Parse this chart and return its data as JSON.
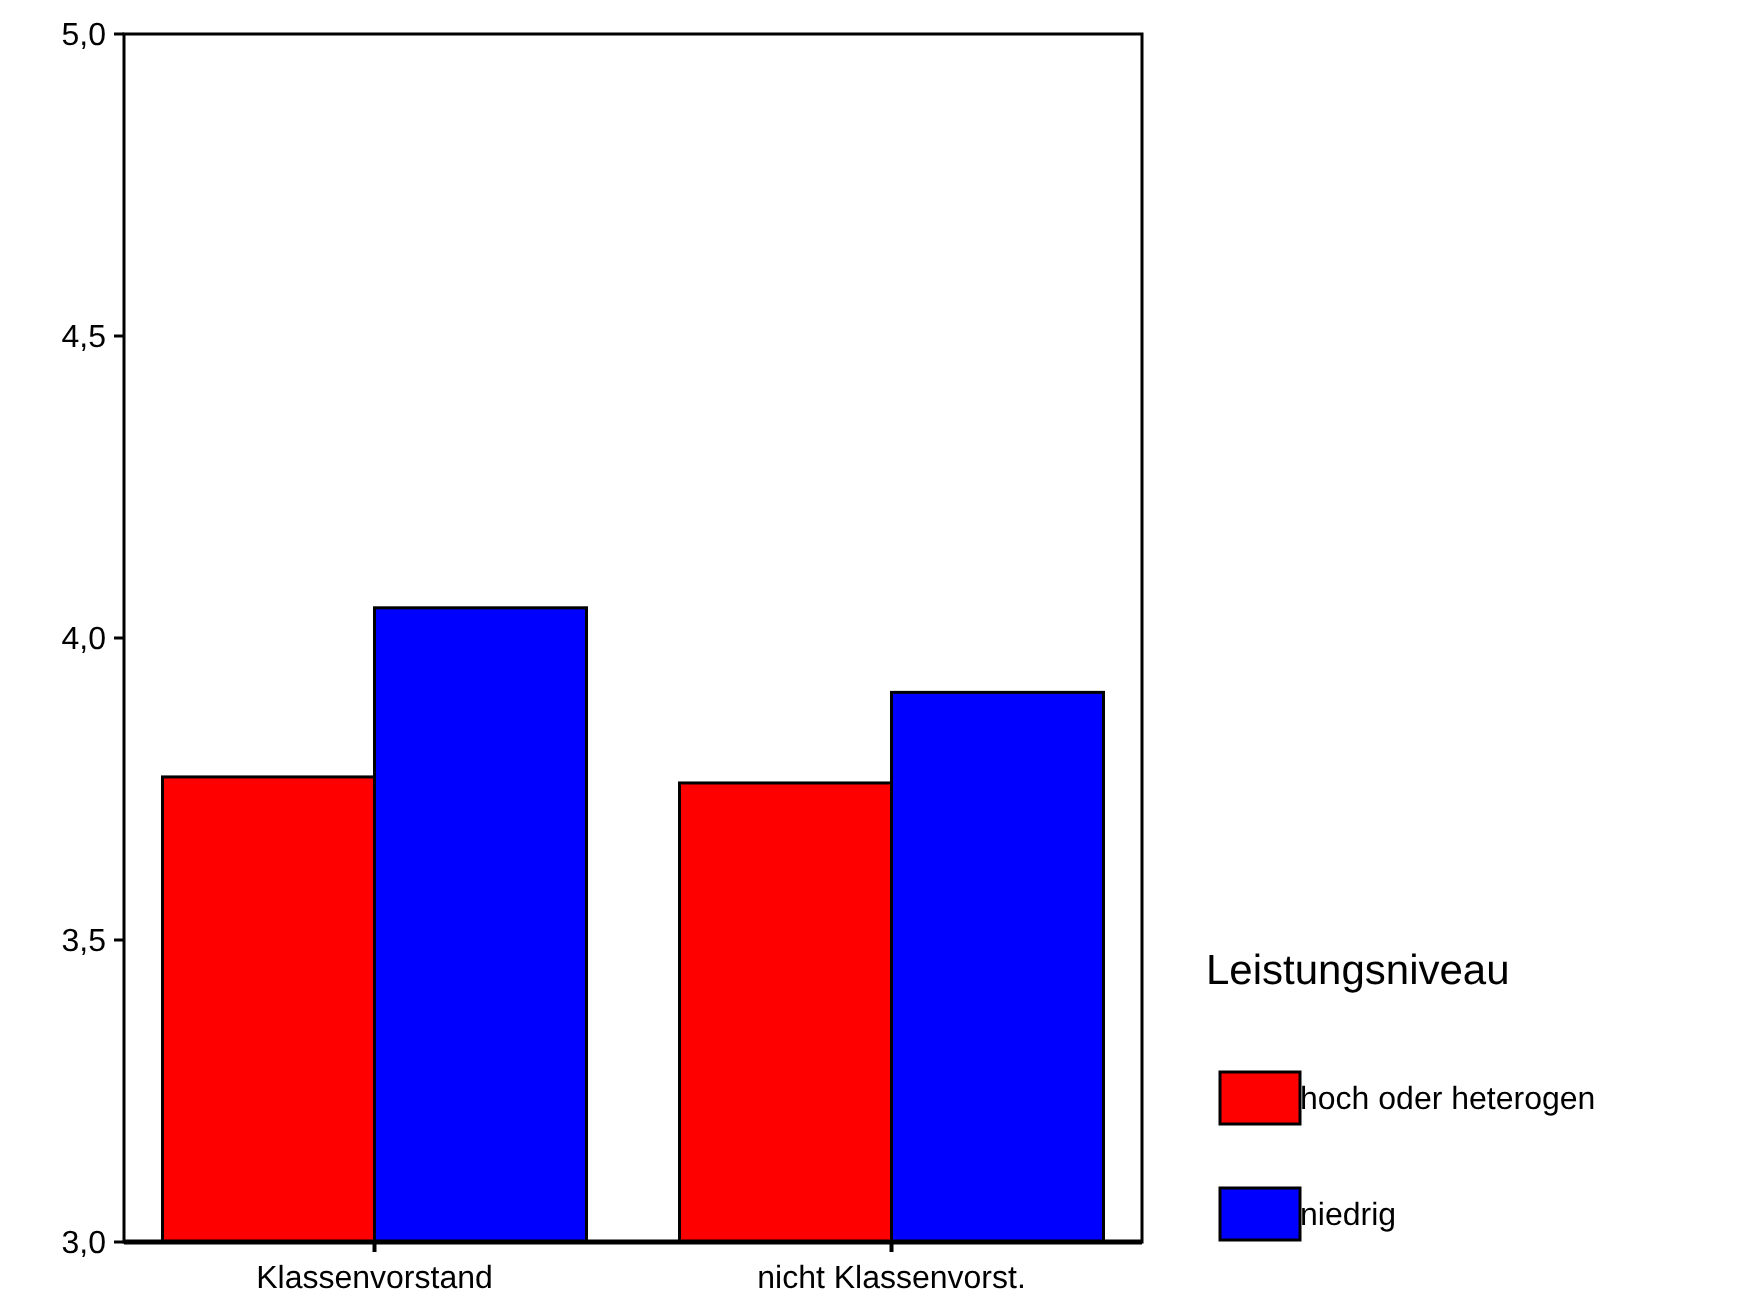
{
  "chart_data": {
    "type": "bar",
    "categories": [
      "Klassenvorstand",
      "nicht Klassenvorst."
    ],
    "series": [
      {
        "name": "hoch oder heterogen",
        "color": "#ff0000",
        "values": [
          3.77,
          3.76
        ]
      },
      {
        "name": "niedrig",
        "color": "#0000ff",
        "values": [
          4.05,
          3.91
        ]
      }
    ],
    "ylim": [
      3,
      5
    ],
    "yticks": [
      {
        "value": 3,
        "label": "3,0"
      },
      {
        "value": 3.5,
        "label": "3,5"
      },
      {
        "value": 4,
        "label": "4,0"
      },
      {
        "value": 4.5,
        "label": "4,5"
      },
      {
        "value": 5,
        "label": "5,0"
      }
    ],
    "legend_title": "Leistungsniveau",
    "legend": "right",
    "grid": false
  }
}
